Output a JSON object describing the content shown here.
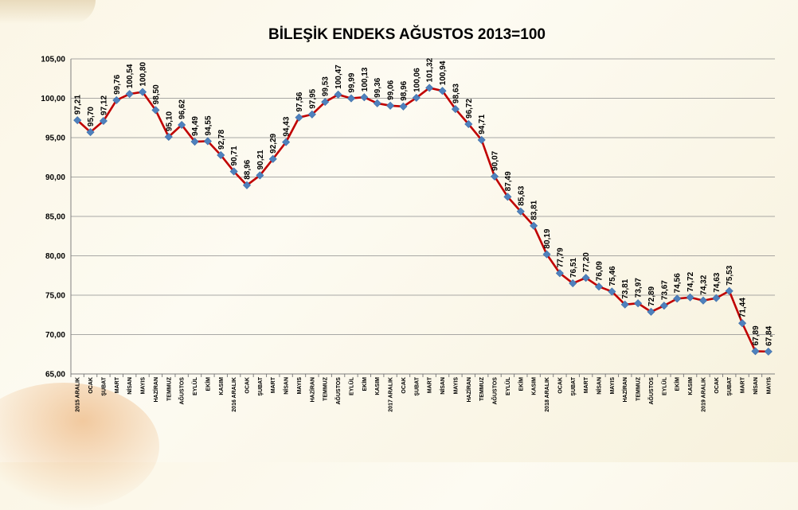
{
  "chart_data": {
    "type": "line",
    "title": "BİLEŞİK ENDEKS AĞUSTOS 2013=100",
    "xlabel": "",
    "ylabel": "",
    "ylim": [
      65,
      105
    ],
    "yticks": [
      "65,00",
      "70,00",
      "75,00",
      "80,00",
      "85,00",
      "90,00",
      "95,00",
      "100,00",
      "105,00"
    ],
    "grid": true,
    "legend": "none",
    "line_color": "#c00000",
    "marker_color": "#4f81bd",
    "categories": [
      "2015 ARALIK",
      "OCAK",
      "ŞUBAT",
      "MART",
      "NİSAN",
      "MAYIS",
      "HAZİRAN",
      "TEMMUZ",
      "AĞUSTOS",
      "EYLÜL",
      "EKİM",
      "KASIM",
      "2016 ARALIK",
      "OCAK",
      "ŞUBAT",
      "MART",
      "NİSAN",
      "MAYIS",
      "HAZİRAN",
      "TEMMUZ",
      "AĞUSTOS",
      "EYLÜL",
      "EKİM",
      "KASIM",
      "2017 ARALIK",
      "OCAK",
      "ŞUBAT",
      "MART",
      "NİSAN",
      "MAYIS",
      "HAZİRAN",
      "TEMMUZ",
      "AĞUSTOS",
      "EYLÜL",
      "EKİM",
      "KASIM",
      "2018 ARALIK",
      "OCAK",
      "ŞUBAT",
      "MART",
      "NİSAN",
      "MAYIS",
      "HAZİRAN",
      "TEMMUZ",
      "AĞUSTOS",
      "EYLÜL",
      "EKİM",
      "KASIM",
      "2019 ARALIK",
      "OCAK",
      "ŞUBAT",
      "MART",
      "NİSAN",
      "MAYIS"
    ],
    "values": [
      97.21,
      95.7,
      97.12,
      99.76,
      100.54,
      100.8,
      98.5,
      95.1,
      96.62,
      94.49,
      94.55,
      92.78,
      90.71,
      88.96,
      90.21,
      92.29,
      94.43,
      97.56,
      97.95,
      99.53,
      100.47,
      99.99,
      100.13,
      99.36,
      99.06,
      98.96,
      100.06,
      101.32,
      100.94,
      98.63,
      96.72,
      94.71,
      90.07,
      87.49,
      85.63,
      83.81,
      80.19,
      77.79,
      76.51,
      77.2,
      76.09,
      75.46,
      73.81,
      73.97,
      72.89,
      73.67,
      74.56,
      74.72,
      74.32,
      74.63,
      75.53,
      71.44,
      67.89,
      67.84
    ],
    "data_labels": [
      "97,21",
      "95,70",
      "97,12",
      "99,76",
      "100,54",
      "100,80",
      "98,50",
      "95,10",
      "96,62",
      "94,49",
      "94,55",
      "92,78",
      "90,71",
      "88,96",
      "90,21",
      "92,29",
      "94,43",
      "97,56",
      "97,95",
      "99,53",
      "100,47",
      "99,99",
      "100,13",
      "99,36",
      "99,06",
      "98,96",
      "100,06",
      "101,32",
      "100,94",
      "98,63",
      "96,72",
      "94,71",
      "90,07",
      "87,49",
      "85,63",
      "83,81",
      "80,19",
      "77,79",
      "76,51",
      "77,20",
      "76,09",
      "75,46",
      "73,81",
      "73,97",
      "72,89",
      "73,67",
      "74,56",
      "74,72",
      "74,32",
      "74,63",
      "75,53",
      "71,44",
      "67,89",
      "67,84"
    ]
  }
}
